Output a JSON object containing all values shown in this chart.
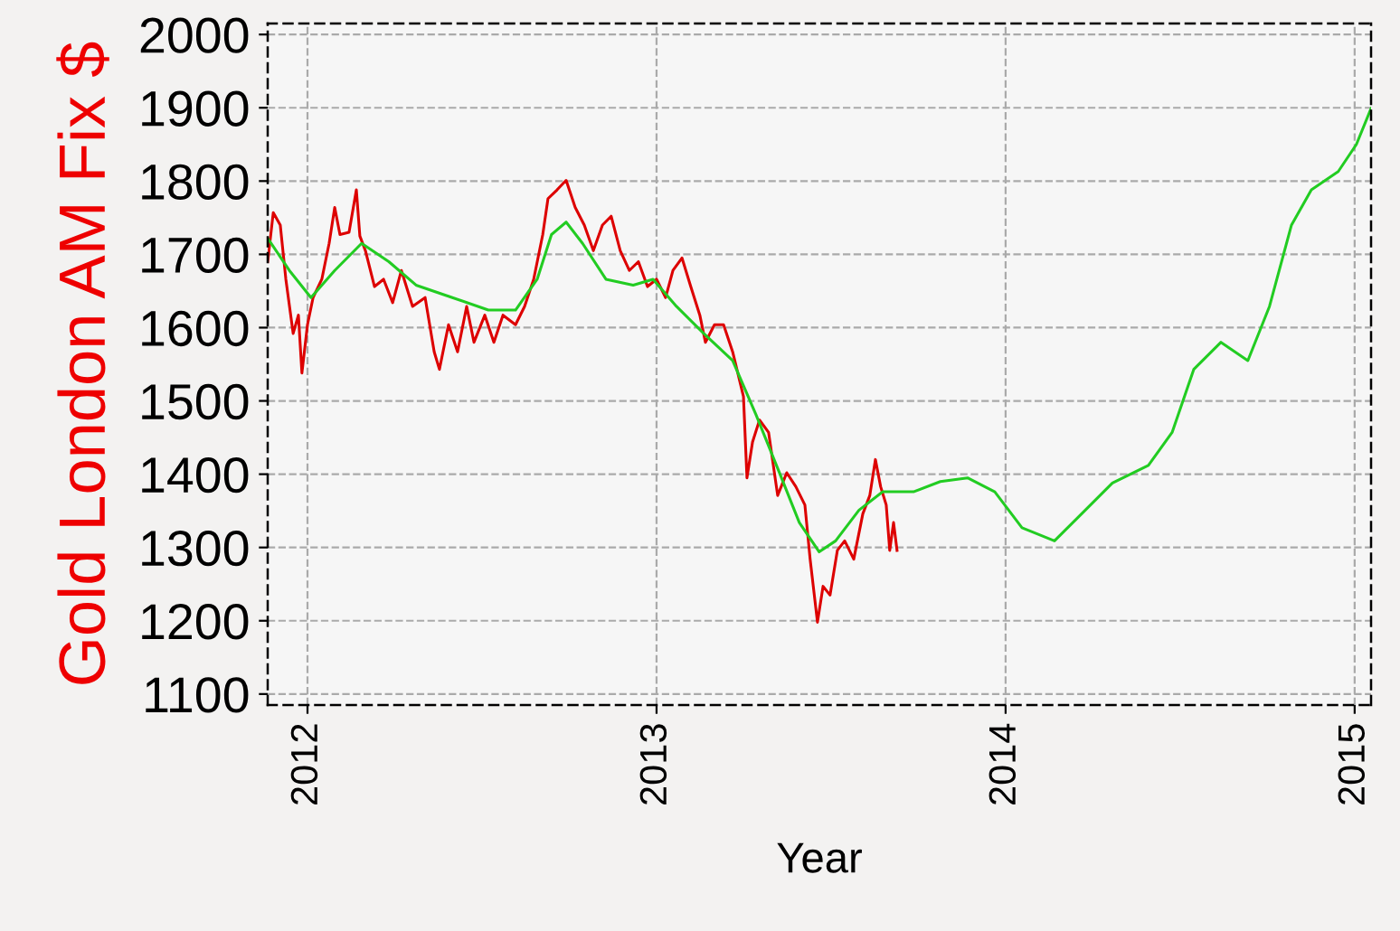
{
  "chart_data": {
    "type": "line",
    "xlabel": "Year",
    "ylabel": "Gold London AM Fix $",
    "xlim": [
      2011.886,
      2015.047
    ],
    "xticks": [
      2012,
      2013,
      2014,
      2015
    ],
    "ylim": [
      1085,
      2015
    ],
    "yticks": [
      1100,
      1200,
      1300,
      1400,
      1500,
      1600,
      1700,
      1800,
      1900,
      2000
    ],
    "grid": true,
    "line_style": "solid",
    "marker": "none",
    "series": [
      {
        "color": "#dd0000",
        "x": [
          2011.886,
          2011.902,
          2011.922,
          2011.938,
          2011.959,
          2011.974,
          2011.984,
          2012.0,
          2012.016,
          2012.041,
          2012.062,
          2012.078,
          2012.093,
          2012.119,
          2012.14,
          2012.15,
          2012.166,
          2012.192,
          2012.218,
          2012.244,
          2012.269,
          2012.301,
          2012.337,
          2012.363,
          2012.378,
          2012.404,
          2012.43,
          2012.456,
          2012.477,
          2012.508,
          2012.534,
          2012.56,
          2012.596,
          2012.622,
          2012.648,
          2012.674,
          2012.689,
          2012.715,
          2012.741,
          2012.767,
          2012.793,
          2012.819,
          2012.845,
          2012.87,
          2012.896,
          2012.922,
          2012.948,
          2012.974,
          2013.0,
          2013.026,
          2013.047,
          2013.073,
          2013.098,
          2013.124,
          2013.14,
          2013.166,
          2013.192,
          2013.218,
          2013.249,
          2013.259,
          2013.275,
          2013.295,
          2013.321,
          2013.347,
          2013.373,
          2013.399,
          2013.425,
          2013.44,
          2013.461,
          2013.477,
          2013.497,
          2013.518,
          2013.539,
          2013.565,
          2013.591,
          2013.611,
          2013.627,
          2013.642,
          2013.658,
          2013.668,
          2013.679,
          2013.689
        ],
        "values": [
          1690,
          1757,
          1740,
          1666,
          1592,
          1617,
          1538,
          1604,
          1641,
          1666,
          1715,
          1764,
          1727,
          1730,
          1788,
          1725,
          1705,
          1656,
          1666,
          1634,
          1678,
          1629,
          1641,
          1567,
          1543,
          1604,
          1567,
          1629,
          1580,
          1617,
          1580,
          1617,
          1604,
          1629,
          1666,
          1727,
          1776,
          1788,
          1801,
          1764,
          1740,
          1705,
          1740,
          1752,
          1705,
          1678,
          1690,
          1656,
          1666,
          1641,
          1678,
          1695,
          1656,
          1617,
          1580,
          1604,
          1604,
          1567,
          1506,
          1395,
          1444,
          1474,
          1457,
          1371,
          1402,
          1383,
          1358,
          1284,
          1198,
          1247,
          1235,
          1296,
          1309,
          1284,
          1346,
          1371,
          1420,
          1383,
          1358,
          1296,
          1334,
          1296
        ]
      },
      {
        "color": "#22cc22",
        "x": [
          2011.886,
          2011.948,
          2012.01,
          2012.078,
          2012.155,
          2012.233,
          2012.311,
          2012.415,
          2012.518,
          2012.596,
          2012.658,
          2012.699,
          2012.741,
          2012.788,
          2012.855,
          2012.933,
          2012.99,
          2013.057,
          2013.135,
          2013.218,
          2013.285,
          2013.347,
          2013.409,
          2013.466,
          2013.513,
          2013.58,
          2013.648,
          2013.736,
          2013.813,
          2013.891,
          2013.969,
          2014.047,
          2014.14,
          2014.218,
          2014.306,
          2014.409,
          2014.477,
          2014.539,
          2014.617,
          2014.694,
          2014.756,
          2014.819,
          2014.876,
          2014.953,
          2015.005,
          2015.047
        ],
        "values": [
          1722,
          1678,
          1641,
          1678,
          1715,
          1690,
          1658,
          1641,
          1624,
          1624,
          1666,
          1727,
          1744,
          1715,
          1666,
          1658,
          1666,
          1629,
          1592,
          1555,
          1481,
          1408,
          1334,
          1294,
          1309,
          1351,
          1376,
          1376,
          1390,
          1395,
          1376,
          1327,
          1309,
          1346,
          1388,
          1412,
          1457,
          1543,
          1580,
          1555,
          1629,
          1740,
          1788,
          1813,
          1850,
          1899
        ]
      }
    ]
  }
}
